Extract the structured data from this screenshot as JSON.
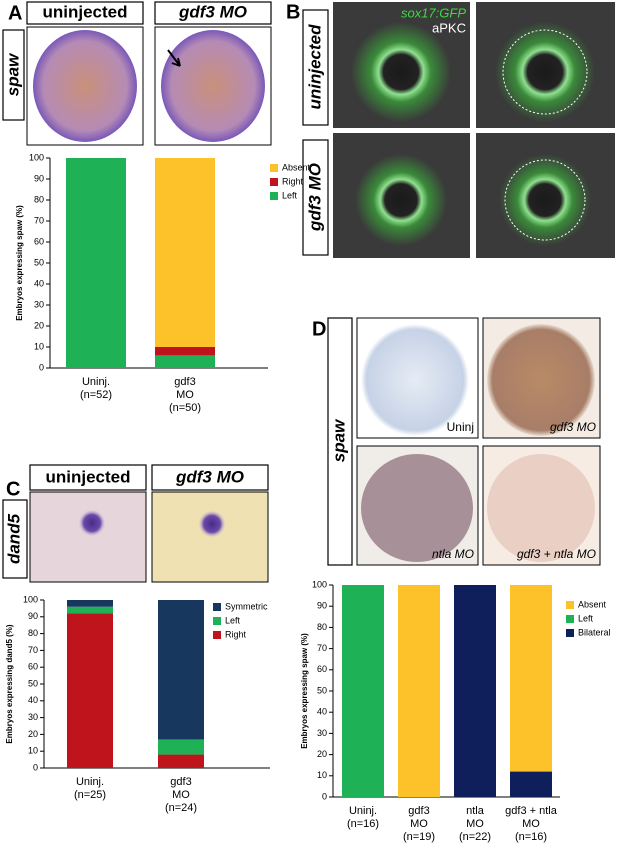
{
  "panels": [
    {
      "label": "A",
      "headers": [
        "uninjected",
        "gdf3 MO"
      ],
      "row_label": "spaw"
    },
    {
      "label": "B",
      "overlay": [
        "sox17:GFP",
        "aPKC"
      ],
      "row_labels": [
        "uninjected",
        "gdf3 MO"
      ]
    },
    {
      "label": "C",
      "headers": [
        "uninjected",
        "gdf3 MO"
      ],
      "row_label": "dand5"
    },
    {
      "label": "D",
      "row_label": "spaw",
      "image_labels": [
        "Uninj",
        "gdf3 MO",
        "ntla MO",
        "gdf3 + ntla MO"
      ]
    }
  ],
  "chart_data": [
    {
      "type": "bar",
      "stacked": true,
      "y_label": "Embryos expressing spaw (%)",
      "categories": [
        [
          "Uninj.",
          "(n=52)"
        ],
        [
          "gdf3",
          "MO",
          "(n=50)"
        ]
      ],
      "series": [
        {
          "name": "Left",
          "color": "#1fb155",
          "values": [
            100,
            6
          ]
        },
        {
          "name": "Right",
          "color": "#c0141c",
          "values": [
            0,
            4
          ]
        },
        {
          "name": "Absent",
          "color": "#fdc12a",
          "values": [
            0,
            90
          ]
        }
      ],
      "ylim": [
        0,
        100
      ],
      "yticks": [
        0,
        10,
        20,
        30,
        40,
        50,
        60,
        70,
        80,
        90,
        100
      ],
      "legend": "upper right",
      "grid": false
    },
    {
      "type": "bar",
      "stacked": true,
      "y_label": "Embryos expressing dand5 (%)",
      "categories": [
        [
          "Uninj.",
          "(n=25)"
        ],
        [
          "gdf3",
          "MO",
          "(n=24)"
        ]
      ],
      "series": [
        {
          "name": "Right",
          "color": "#c0141c",
          "values": [
            92,
            8
          ]
        },
        {
          "name": "Left",
          "color": "#1fb155",
          "values": [
            4,
            9
          ]
        },
        {
          "name": "Symmetric",
          "color": "#17375e",
          "values": [
            4,
            83
          ]
        }
      ],
      "ylim": [
        0,
        100
      ],
      "yticks": [
        0,
        10,
        20,
        30,
        40,
        50,
        60,
        70,
        80,
        90,
        100
      ],
      "legend": "upper right",
      "grid": false
    },
    {
      "type": "bar",
      "stacked": true,
      "y_label": "Embryos expressing spaw (%)",
      "categories": [
        [
          "Uninj.",
          "(n=16)"
        ],
        [
          "gdf3",
          "MO",
          "(n=19)"
        ],
        [
          "ntla",
          "MO",
          "(n=22)"
        ],
        [
          "gdf3 + ntla",
          "MO",
          "(n=16)"
        ]
      ],
      "series": [
        {
          "name": "Bilateral",
          "color": "#0e1f5b",
          "values": [
            0,
            0,
            100,
            12
          ]
        },
        {
          "name": "Left",
          "color": "#1fb155",
          "values": [
            100,
            0,
            0,
            0
          ]
        },
        {
          "name": "Absent",
          "color": "#fdc12a",
          "values": [
            0,
            100,
            0,
            88
          ]
        }
      ],
      "ylim": [
        0,
        100
      ],
      "yticks": [
        0,
        10,
        20,
        30,
        40,
        50,
        60,
        70,
        80,
        90,
        100
      ],
      "legend": "upper right",
      "grid": false
    }
  ]
}
